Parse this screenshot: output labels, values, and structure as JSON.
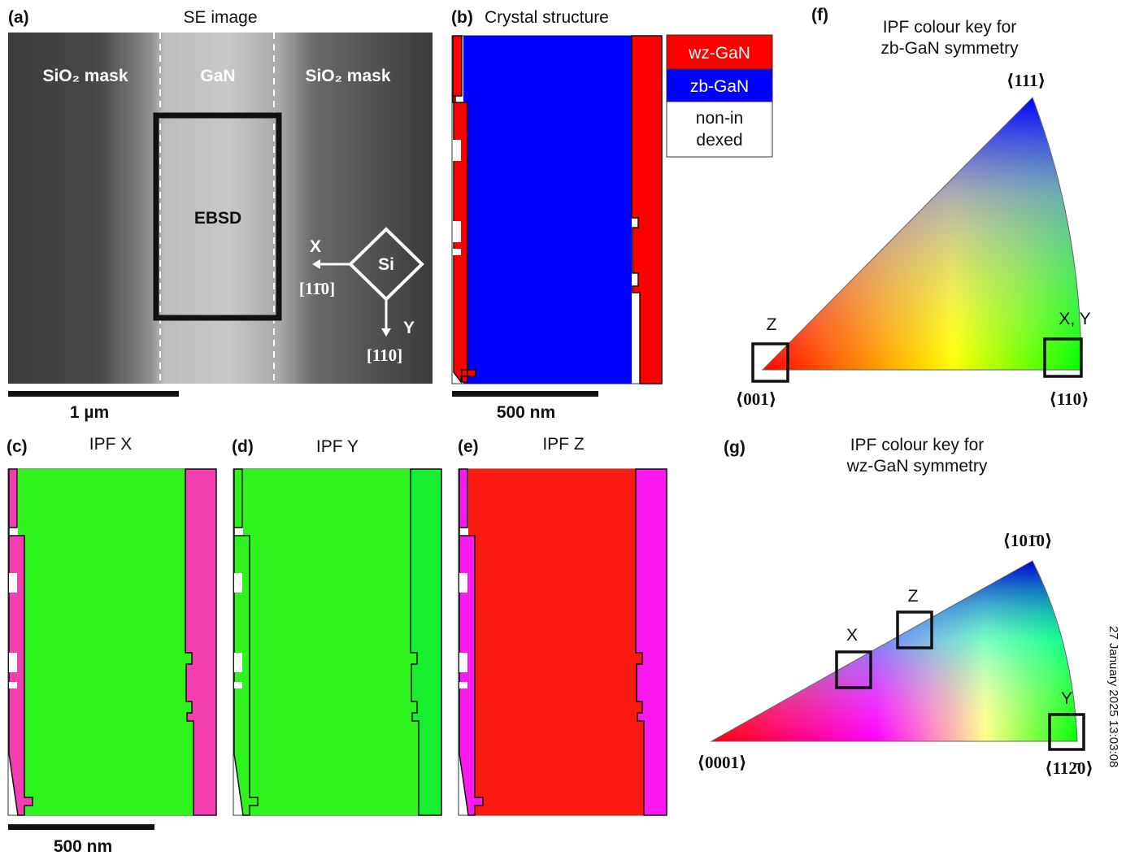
{
  "panels": {
    "a": {
      "label": "(a)",
      "title": "SE image",
      "regions": [
        "SiO₂ mask",
        "GaN",
        "SiO₂ mask"
      ],
      "box_label": "EBSD",
      "x_axis": "X",
      "x_dir": "[11̄0]",
      "substrate": "Si",
      "y_axis": "Y",
      "y_dir": "[110]",
      "scale_bar": "1 µm"
    },
    "b": {
      "label": "(b)",
      "title": "Crystal structure",
      "legend": [
        "wz-GaN",
        "zb-GaN",
        "non-indexed"
      ],
      "scale_bar": "500 nm"
    },
    "c": {
      "label": "(c)",
      "title": "IPF X",
      "scale_bar": "500 nm"
    },
    "d": {
      "label": "(d)",
      "title": "IPF Y"
    },
    "e": {
      "label": "(e)",
      "title": "IPF Z"
    },
    "f": {
      "label": "(f)",
      "title": [
        "IPF colour key for",
        "zb-GaN symmetry"
      ],
      "corners": [
        "⟨111⟩",
        "⟨001⟩",
        "⟨110⟩"
      ],
      "markers": [
        "Z",
        "X, Y"
      ]
    },
    "g": {
      "label": "(g)",
      "title": [
        "IPF colour key for",
        "wz-GaN symmetry"
      ],
      "corners": [
        "⟨101̄0⟩",
        "⟨0001⟩",
        "⟨112̄0⟩"
      ],
      "markers": [
        "X",
        "Z",
        "Y"
      ]
    }
  },
  "timestamp": "27 January 2025 13:03:08"
}
